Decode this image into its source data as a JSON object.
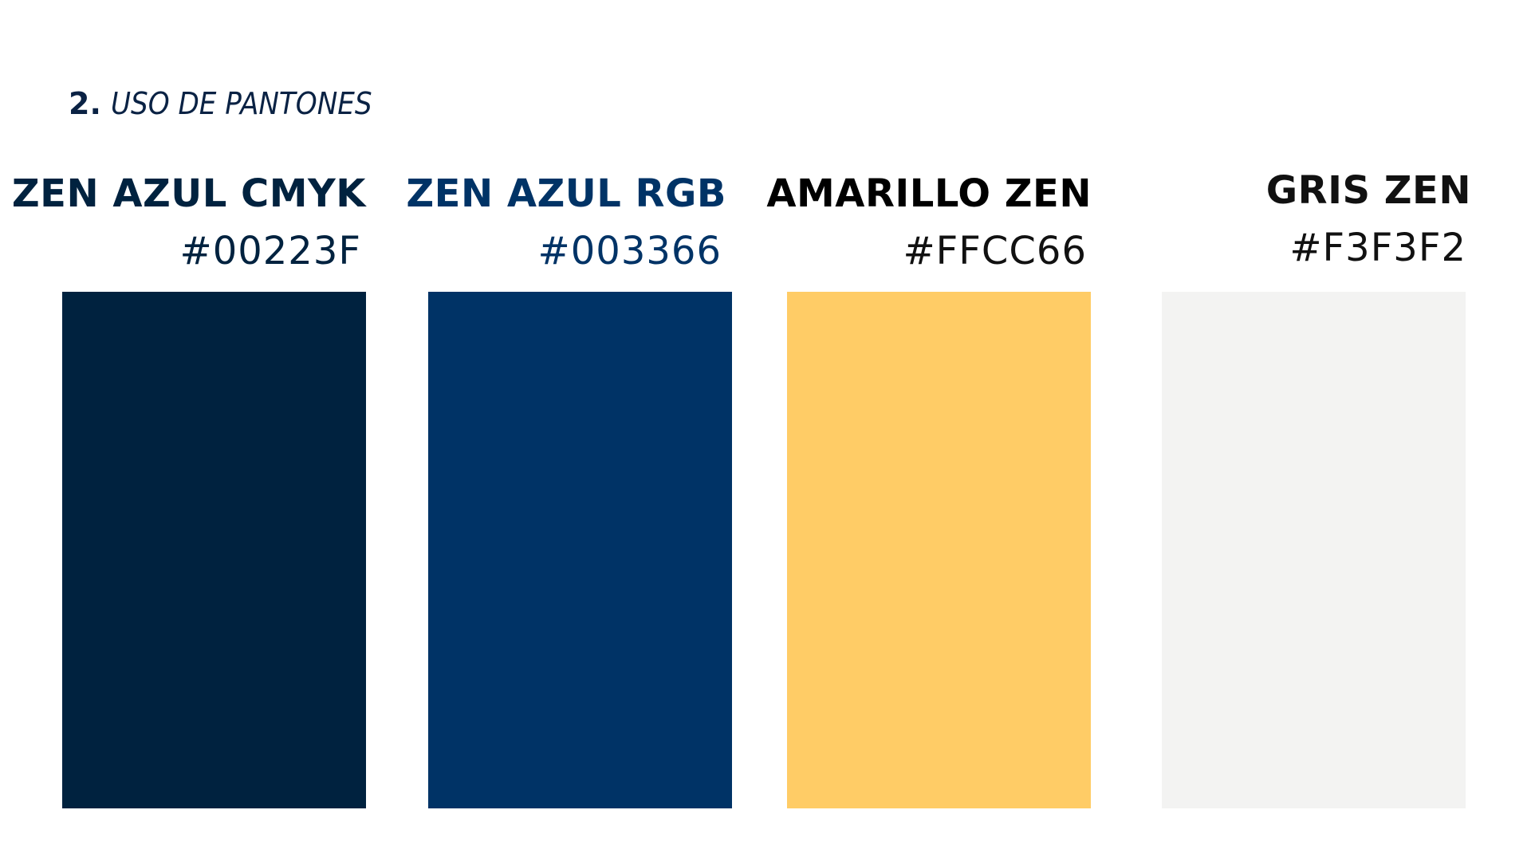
{
  "header": {
    "number": "2.",
    "title": "USO DE PANTONES"
  },
  "swatches": [
    {
      "name": "ZEN AZUL CMYK",
      "hex": "#00223F"
    },
    {
      "name": "ZEN AZUL RGB",
      "hex": "#003366"
    },
    {
      "name": "AMARILLO ZEN",
      "hex": "#FFCC66"
    },
    {
      "name": "GRIS ZEN",
      "hex": "#F3F3F2"
    }
  ]
}
